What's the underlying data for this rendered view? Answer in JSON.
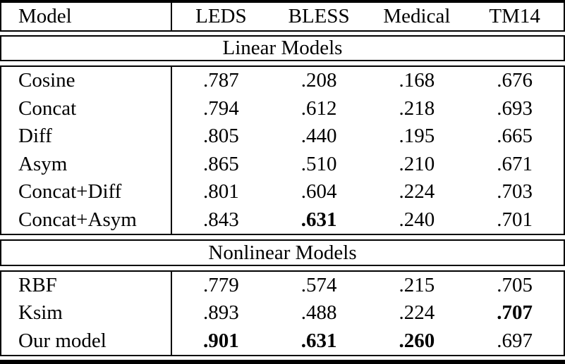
{
  "colors": {
    "text": "#000000",
    "background": "#ffffff",
    "rule": "#000000"
  },
  "table": {
    "header": {
      "model_label": "Model",
      "columns": [
        "LEDS",
        "BLESS",
        "Medical",
        "TM14"
      ]
    },
    "sections": [
      {
        "title": "Linear Models",
        "rows": [
          {
            "model": "Cosine",
            "cells": [
              {
                "v": ".787",
                "b": false
              },
              {
                "v": ".208",
                "b": false
              },
              {
                "v": ".168",
                "b": false
              },
              {
                "v": ".676",
                "b": false
              }
            ]
          },
          {
            "model": "Concat",
            "cells": [
              {
                "v": ".794",
                "b": false
              },
              {
                "v": ".612",
                "b": false
              },
              {
                "v": ".218",
                "b": false
              },
              {
                "v": ".693",
                "b": false
              }
            ]
          },
          {
            "model": "Diff",
            "cells": [
              {
                "v": ".805",
                "b": false
              },
              {
                "v": ".440",
                "b": false
              },
              {
                "v": ".195",
                "b": false
              },
              {
                "v": ".665",
                "b": false
              }
            ]
          },
          {
            "model": "Asym",
            "cells": [
              {
                "v": ".865",
                "b": false
              },
              {
                "v": ".510",
                "b": false
              },
              {
                "v": ".210",
                "b": false
              },
              {
                "v": ".671",
                "b": false
              }
            ]
          },
          {
            "model": "Concat+Diff",
            "cells": [
              {
                "v": ".801",
                "b": false
              },
              {
                "v": ".604",
                "b": false
              },
              {
                "v": ".224",
                "b": false
              },
              {
                "v": ".703",
                "b": false
              }
            ]
          },
          {
            "model": "Concat+Asym",
            "cells": [
              {
                "v": ".843",
                "b": false
              },
              {
                "v": ".631",
                "b": true
              },
              {
                "v": ".240",
                "b": false
              },
              {
                "v": ".701",
                "b": false
              }
            ]
          }
        ]
      },
      {
        "title": "Nonlinear Models",
        "rows": [
          {
            "model": "RBF",
            "cells": [
              {
                "v": ".779",
                "b": false
              },
              {
                "v": ".574",
                "b": false
              },
              {
                "v": ".215",
                "b": false
              },
              {
                "v": ".705",
                "b": false
              }
            ]
          },
          {
            "model": "Ksim",
            "cells": [
              {
                "v": ".893",
                "b": false
              },
              {
                "v": ".488",
                "b": false
              },
              {
                "v": ".224",
                "b": false
              },
              {
                "v": ".707",
                "b": true
              }
            ]
          },
          {
            "model": "Our model",
            "cells": [
              {
                "v": ".901",
                "b": true
              },
              {
                "v": ".631",
                "b": true
              },
              {
                "v": ".260",
                "b": true
              },
              {
                "v": ".697",
                "b": false
              }
            ]
          }
        ]
      }
    ]
  }
}
